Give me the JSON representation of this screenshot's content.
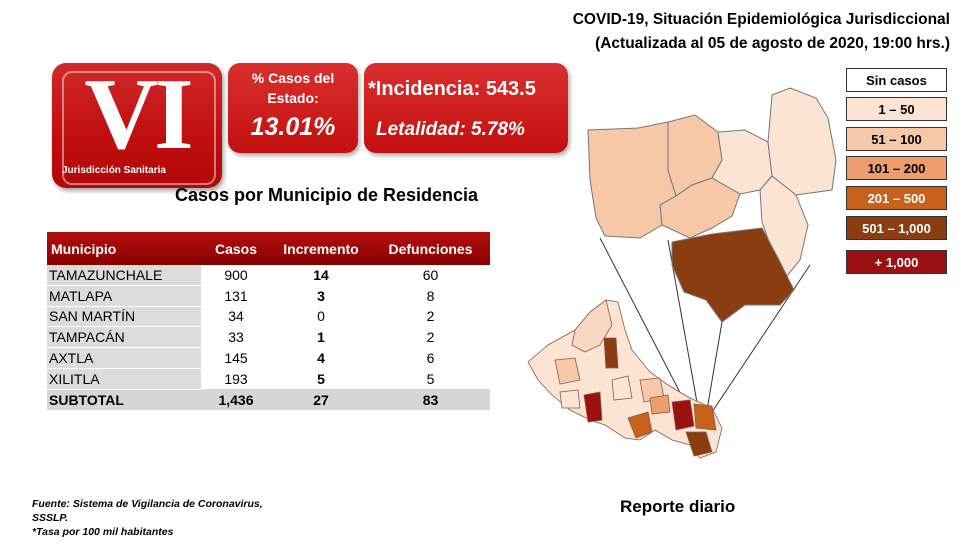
{
  "header": {
    "line1": "COVID-19, Situación Epidemiológica Jurisdiccional",
    "line2": "(Actualizada al 05 de agosto de 2020, 19:00 hrs.)"
  },
  "badge": {
    "numeral": "VI",
    "label": "Jurisdicción Sanitaria"
  },
  "percent_box": {
    "label_line1": "% Casos del",
    "label_line2": "Estado:",
    "value": "13.01%"
  },
  "rates_box": {
    "incidence": "*Incidencia: 543.5",
    "lethality": "Letalidad: 5.78%"
  },
  "subtitle": "Casos por Municipio  de Residencia",
  "table": {
    "headers": [
      "Municipio",
      "Casos",
      "Incremento",
      "Defunciones"
    ],
    "rows": [
      [
        "TAMAZUNCHALE",
        "900",
        "14",
        "60"
      ],
      [
        "MATLAPA",
        "131",
        "3",
        "8"
      ],
      [
        "SAN MARTÍN",
        "34",
        "0",
        "2"
      ],
      [
        "TAMPACÁN",
        "33",
        "1",
        "2"
      ],
      [
        "AXTLA",
        "145",
        "4",
        "6"
      ],
      [
        "XILITLA",
        "193",
        "5",
        "5"
      ]
    ],
    "subtotal": [
      "SUBTOTAL",
      "1,436",
      "27",
      "83"
    ]
  },
  "legend": [
    {
      "label": "Sin casos",
      "color": "#ffffff",
      "text_color": "#000000"
    },
    {
      "label": "1 – 50",
      "color": "#fce4d4",
      "text_color": "#000000"
    },
    {
      "label": "51 – 100",
      "color": "#f6c8a8",
      "text_color": "#000000"
    },
    {
      "label": "101 – 200",
      "color": "#ed9e6c",
      "text_color": "#000000"
    },
    {
      "label": "201 – 500",
      "color": "#c8621a",
      "text_color": "#ffffff"
    },
    {
      "label": "501 – 1,000",
      "color": "#8a3d10",
      "text_color": "#ffffff"
    },
    {
      "label": "+ 1,000",
      "color": "#9b1010",
      "text_color": "#ffffff"
    }
  ],
  "footnote": {
    "line1": "Fuente: Sistema de Vigilancia  de Coronavirus,",
    "line2": "SSSLP.",
    "line3": "*Tasa por 100 mil habitantes"
  },
  "report_label": "Reporte diario"
}
